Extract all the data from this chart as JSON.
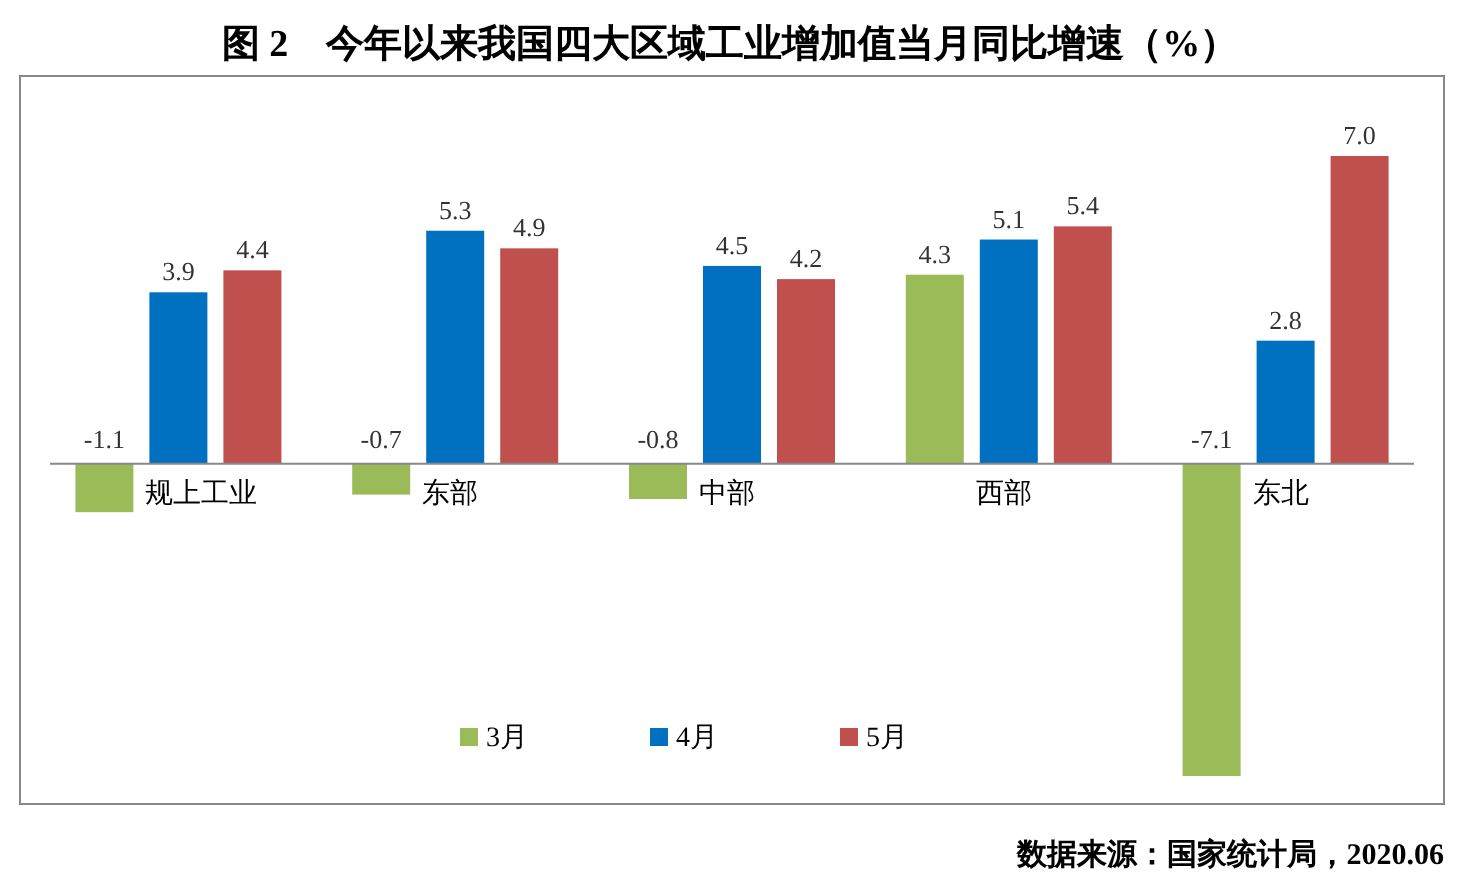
{
  "chart_data": {
    "type": "bar",
    "title": "图 2　今年以来我国四大区域工业增加值当月同比增速（%）",
    "categories": [
      "规上工业",
      "东部",
      "中部",
      "西部",
      "东北"
    ],
    "series": [
      {
        "name": "3月",
        "color": "#9bbb59",
        "values": [
          -1.1,
          -0.7,
          -0.8,
          4.3,
          -7.1
        ],
        "value_labels": [
          "-1.1",
          "-0.7",
          "-0.8",
          "4.3",
          "-7.1"
        ]
      },
      {
        "name": "4月",
        "color": "#0070c0",
        "values": [
          3.9,
          5.3,
          4.5,
          5.1,
          2.8
        ],
        "value_labels": [
          "3.9",
          "5.3",
          "4.5",
          "5.1",
          "2.8"
        ]
      },
      {
        "name": "5月",
        "color": "#c0504d",
        "values": [
          4.4,
          4.9,
          4.2,
          5.4,
          7.0
        ],
        "value_labels": [
          "4.4",
          "4.9",
          "4.2",
          "5.4",
          "7.0"
        ]
      }
    ],
    "legend": "bottom",
    "grid": false,
    "annotations": [
      "数据来源：国家统计局，2020.06"
    ]
  }
}
